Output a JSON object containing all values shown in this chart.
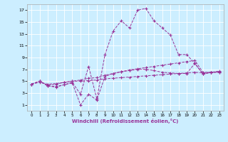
{
  "xlabel": "Windchill (Refroidissement éolien,°C)",
  "bg_color": "#cceeff",
  "line_color": "#993399",
  "xlim": [
    -0.5,
    23.5
  ],
  "ylim": [
    0,
    18
  ],
  "xticks": [
    0,
    1,
    2,
    3,
    4,
    5,
    6,
    7,
    8,
    9,
    10,
    11,
    12,
    13,
    14,
    15,
    16,
    17,
    18,
    19,
    20,
    21,
    22,
    23
  ],
  "yticks": [
    1,
    3,
    5,
    7,
    9,
    11,
    13,
    15,
    17
  ],
  "series1_x": [
    0,
    1,
    2,
    3,
    4,
    5,
    6,
    7,
    8,
    9,
    10,
    11,
    12,
    13,
    14,
    15,
    16,
    17,
    18,
    19,
    20,
    21,
    22,
    23
  ],
  "series1_y": [
    4.5,
    5.0,
    4.2,
    4.1,
    4.4,
    4.8,
    2.8,
    7.5,
    2.0,
    9.5,
    13.5,
    15.2,
    14.0,
    17.0,
    17.3,
    15.2,
    14.0,
    12.8,
    9.5,
    9.5,
    8.0,
    6.2,
    6.5,
    6.5
  ],
  "series2_x": [
    0,
    1,
    2,
    3,
    4,
    5,
    6,
    7,
    8,
    9,
    10,
    11,
    12,
    13,
    14,
    15,
    16,
    17,
    18,
    19,
    20,
    21,
    22,
    23
  ],
  "series2_y": [
    4.5,
    5.0,
    4.3,
    4.5,
    4.8,
    5.0,
    5.2,
    5.5,
    5.6,
    6.0,
    6.3,
    6.6,
    6.9,
    7.1,
    7.3,
    7.5,
    7.7,
    7.9,
    8.1,
    8.3,
    8.5,
    6.5,
    6.5,
    6.7
  ],
  "series3_x": [
    0,
    1,
    2,
    3,
    4,
    5,
    6,
    7,
    8,
    9,
    10,
    11,
    12,
    13,
    14,
    15,
    16,
    17,
    18,
    19,
    20,
    21,
    22,
    23
  ],
  "series3_y": [
    4.5,
    4.8,
    4.5,
    4.6,
    4.8,
    5.0,
    5.0,
    5.1,
    5.2,
    5.4,
    5.5,
    5.6,
    5.7,
    5.8,
    5.9,
    6.0,
    6.1,
    6.2,
    6.3,
    6.4,
    6.5,
    6.4,
    6.5,
    6.6
  ],
  "series4_x": [
    0,
    1,
    2,
    3,
    4,
    5,
    6,
    7,
    8,
    9,
    10,
    11,
    12,
    13,
    14,
    15,
    16,
    17,
    18,
    19,
    20,
    21,
    22,
    23
  ],
  "series4_y": [
    4.5,
    5.0,
    4.2,
    4.0,
    4.4,
    4.7,
    1.0,
    2.8,
    1.8,
    5.8,
    6.3,
    6.6,
    6.8,
    7.0,
    7.0,
    6.8,
    6.5,
    6.4,
    6.3,
    6.3,
    8.0,
    6.2,
    6.5,
    6.5
  ]
}
